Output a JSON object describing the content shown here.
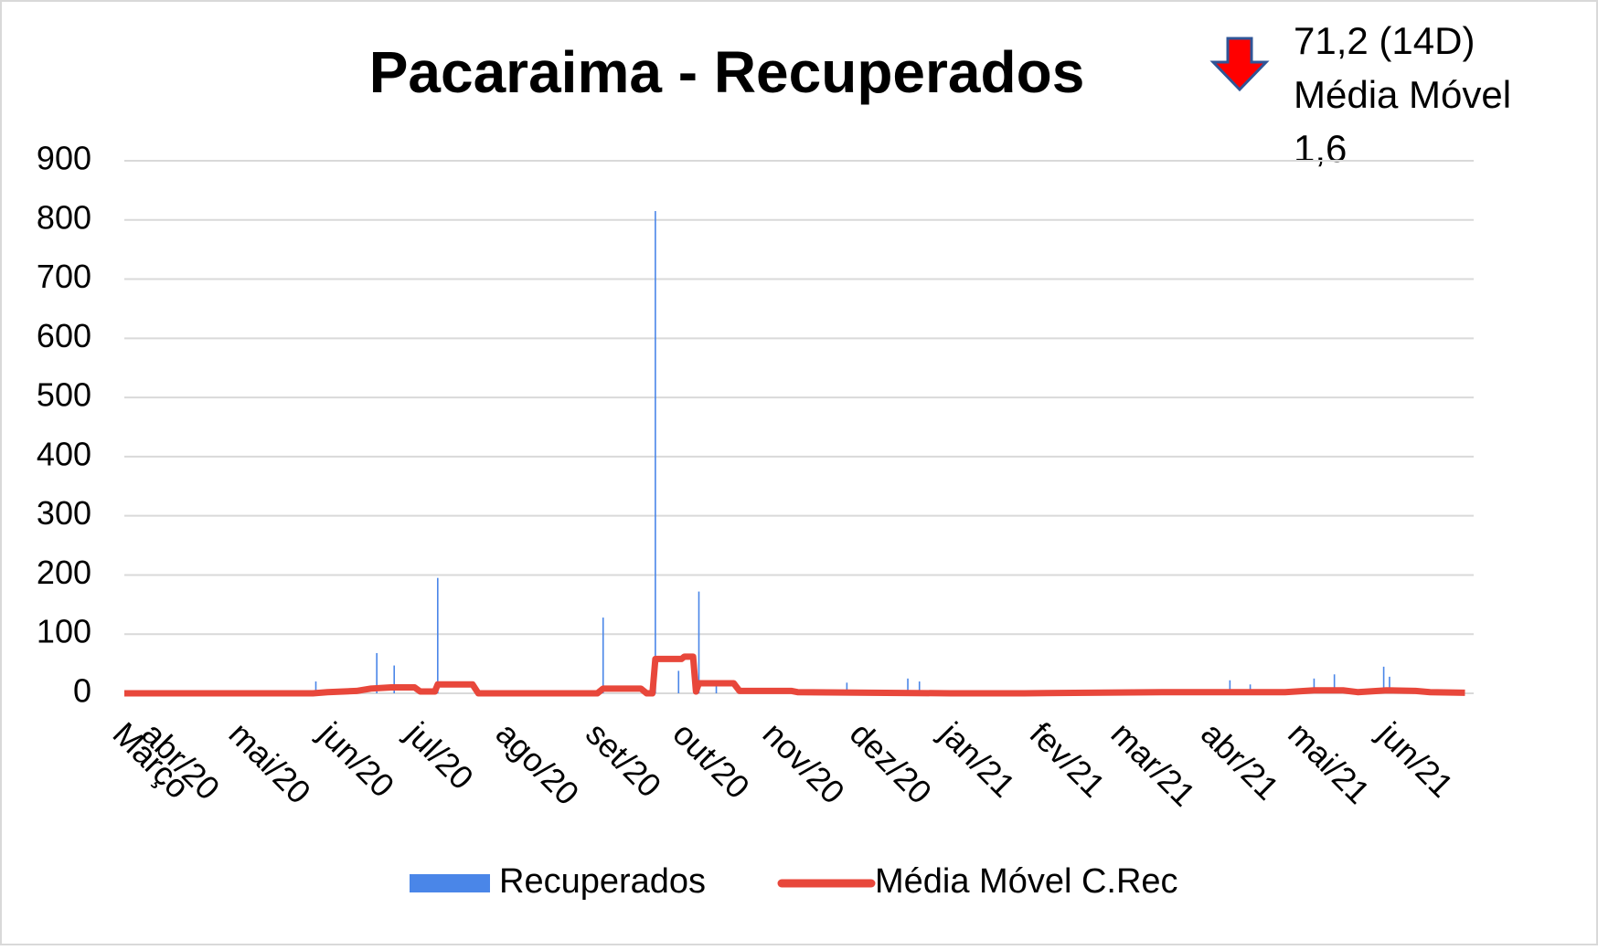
{
  "chart_data": {
    "type": "combo",
    "title": "Pacaraima - Recuperados",
    "annotation": [
      "71,2 (14D)",
      "Média Móvel",
      "1,6"
    ],
    "xlim": [
      0,
      465
    ],
    "xticks": [
      {
        "value": 0,
        "label": "Março"
      },
      {
        "value": 10,
        "label": "abr/20"
      },
      {
        "value": 40,
        "label": "mai/20"
      },
      {
        "value": 71,
        "label": "jun/20"
      },
      {
        "value": 101,
        "label": "jul/20"
      },
      {
        "value": 132,
        "label": "ago/20"
      },
      {
        "value": 163,
        "label": "set/20"
      },
      {
        "value": 193,
        "label": "out/20"
      },
      {
        "value": 224,
        "label": "nov/20"
      },
      {
        "value": 254,
        "label": "dez/20"
      },
      {
        "value": 285,
        "label": "jan/21"
      },
      {
        "value": 316,
        "label": "fev/21"
      },
      {
        "value": 344,
        "label": "mar/21"
      },
      {
        "value": 375,
        "label": "abr/21"
      },
      {
        "value": 405,
        "label": "mai/21"
      },
      {
        "value": 436,
        "label": "jun/21"
      }
    ],
    "ylim": [
      0,
      900
    ],
    "yticks": [
      0,
      100,
      200,
      300,
      400,
      500,
      600,
      700,
      800,
      900
    ],
    "grid": true,
    "legend": "bottom",
    "series": [
      {
        "name": "Recuperados",
        "type": "bar",
        "color": "#4a86e8",
        "x": [
          66,
          87,
          93,
          108,
          165,
          183,
          191,
          198,
          204,
          249,
          270,
          274,
          381,
          388,
          410,
          417,
          434,
          436
        ],
        "values": [
          20,
          68,
          47,
          195,
          128,
          815,
          38,
          172,
          20,
          18,
          25,
          20,
          22,
          15,
          25,
          32,
          45,
          28
        ]
      },
      {
        "name": "Média Móvel C.Rec",
        "type": "line",
        "color": "#e8473b",
        "x": [
          0,
          65,
          70,
          80,
          85,
          92,
          100,
          102,
          107,
          108,
          120,
          122,
          163,
          165,
          178,
          180,
          182,
          183,
          192,
          193,
          196,
          197,
          198,
          210,
          212,
          230,
          232,
          285,
          310,
          360,
          400,
          410,
          420,
          425,
          435,
          445,
          450,
          462
        ],
        "values": [
          0,
          0,
          2,
          4,
          8,
          10,
          10,
          3,
          3,
          15,
          15,
          0,
          0,
          8,
          8,
          0,
          0,
          58,
          58,
          62,
          62,
          3,
          17,
          17,
          4,
          4,
          2,
          0,
          0,
          2,
          2,
          5,
          5,
          2,
          5,
          4,
          2,
          1
        ]
      }
    ]
  }
}
